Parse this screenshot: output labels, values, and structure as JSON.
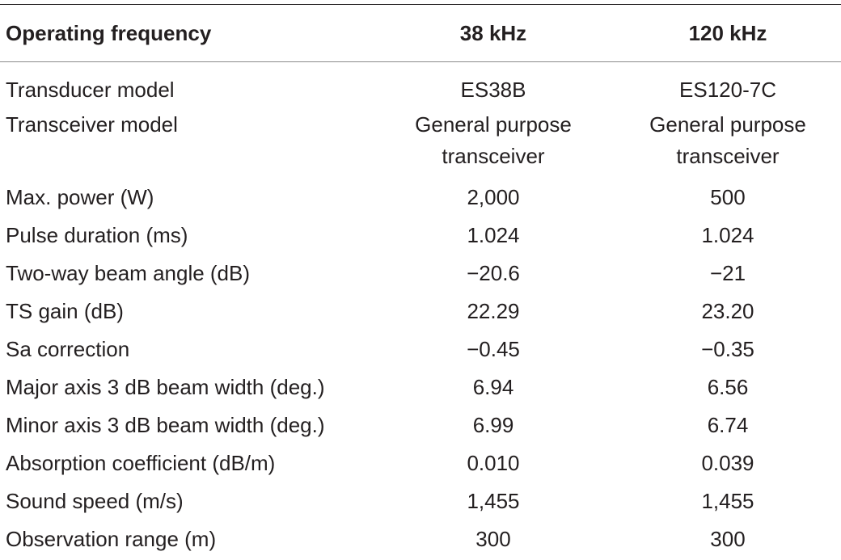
{
  "table": {
    "headers": [
      "Operating frequency",
      "38 kHz",
      "120 kHz"
    ],
    "rows": [
      {
        "label": "Transducer model",
        "v38": [
          "ES38B"
        ],
        "v120": [
          "ES120-7C"
        ]
      },
      {
        "label": "Transceiver model",
        "v38": [
          "General purpose",
          "transceiver"
        ],
        "v120": [
          "General purpose",
          "transceiver"
        ]
      },
      {
        "label": "Max. power (W)",
        "v38": [
          "2,000"
        ],
        "v120": [
          "500"
        ]
      },
      {
        "label": "Pulse duration (ms)",
        "v38": [
          "1.024"
        ],
        "v120": [
          "1.024"
        ]
      },
      {
        "label": "Two-way beam angle (dB)",
        "v38": [
          "−20.6"
        ],
        "v120": [
          "−21"
        ]
      },
      {
        "label": "TS gain (dB)",
        "v38": [
          "22.29"
        ],
        "v120": [
          "23.20"
        ]
      },
      {
        "label": "Sa correction",
        "v38": [
          "−0.45"
        ],
        "v120": [
          "−0.35"
        ]
      },
      {
        "label": "Major axis 3 dB beam width (deg.)",
        "v38": [
          "6.94"
        ],
        "v120": [
          "6.56"
        ]
      },
      {
        "label": "Minor axis 3 dB beam width (deg.)",
        "v38": [
          "6.99"
        ],
        "v120": [
          "6.74"
        ]
      },
      {
        "label": "Absorption coefficient (dB/m)",
        "v38": [
          "0.010"
        ],
        "v120": [
          "0.039"
        ]
      },
      {
        "label": "Sound speed (m/s)",
        "v38": [
          "1,455"
        ],
        "v120": [
          "1,455"
        ]
      },
      {
        "label": "Observation range (m)",
        "v38": [
          "300"
        ],
        "v120": [
          "300"
        ]
      }
    ]
  },
  "colors": {
    "text": "#231f20",
    "top_rule": "#231f20",
    "header_rule": "#8a8a8a"
  }
}
